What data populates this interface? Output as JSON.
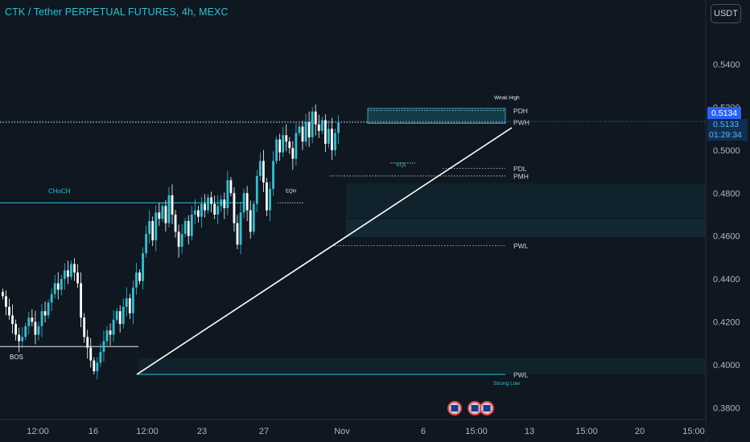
{
  "title": "CTK / Tether PERPETUAL FUTURES, 4h, MEXC",
  "currency_button": "USDT",
  "colors": {
    "background": "#0f1721",
    "accent": "#2fc1d3",
    "bull": "#2fc1d3",
    "bear": "#ffffff",
    "trendline": "#ffffff",
    "last_price": "#2962ff",
    "grid_text": "#b2b5be",
    "label_text": "#d1d4dc"
  },
  "chart_data": {
    "type": "candlestick",
    "y_axis": {
      "ylim": [
        0.3745,
        0.57
      ],
      "ticks": [
        "0.5400",
        "0.5200",
        "0.5000",
        "0.4800",
        "0.4600",
        "0.4400",
        "0.4200",
        "0.4000",
        "0.3800"
      ],
      "tick_values": [
        0.54,
        0.52,
        0.5,
        0.48,
        0.46,
        0.44,
        0.42,
        0.4,
        0.38
      ]
    },
    "x_axis": {
      "ticks": [
        "12:00",
        "16",
        "12:00",
        "23",
        "27",
        "Nov",
        "6",
        "15:00",
        "13",
        "15:00",
        "20",
        "15:00"
      ],
      "bar_positions": [
        11,
        28,
        43,
        60,
        79,
        102,
        128,
        145,
        159,
        176,
        193,
        210
      ]
    },
    "last_price": {
      "value": 0.5134,
      "label": "0.5134",
      "current": "0.5133",
      "countdown": "01:29:34"
    },
    "candles_close": [
      0.432,
      0.427,
      0.423,
      0.419,
      0.414,
      0.411,
      0.413,
      0.418,
      0.422,
      0.42,
      0.414,
      0.418,
      0.425,
      0.423,
      0.429,
      0.433,
      0.438,
      0.435,
      0.44,
      0.444,
      0.441,
      0.447,
      0.443,
      0.438,
      0.422,
      0.413,
      0.408,
      0.402,
      0.397,
      0.401,
      0.406,
      0.411,
      0.416,
      0.414,
      0.421,
      0.425,
      0.419,
      0.427,
      0.431,
      0.424,
      0.436,
      0.443,
      0.439,
      0.452,
      0.461,
      0.467,
      0.458,
      0.471,
      0.468,
      0.474,
      0.466,
      0.479,
      0.47,
      0.462,
      0.455,
      0.461,
      0.467,
      0.46,
      0.47,
      0.472,
      0.469,
      0.475,
      0.472,
      0.478,
      0.475,
      0.47,
      0.474,
      0.477,
      0.473,
      0.486,
      0.48,
      0.466,
      0.456,
      0.471,
      0.48,
      0.472,
      0.462,
      0.475,
      0.488,
      0.495,
      0.485,
      0.472,
      0.482,
      0.495,
      0.505,
      0.499,
      0.507,
      0.504,
      0.501,
      0.496,
      0.508,
      0.511,
      0.504,
      0.513,
      0.506,
      0.518,
      0.512,
      0.509,
      0.514,
      0.503,
      0.51,
      0.5,
      0.508,
      0.513
    ],
    "zones": [
      {
        "label": "PDH",
        "value": 0.5185
      },
      {
        "label": "PWH",
        "value": 0.513
      },
      {
        "label": "PDL",
        "value": 0.4915
      },
      {
        "label": "PMH",
        "value": 0.488
      },
      {
        "label": "PWL",
        "value": 0.4555
      },
      {
        "label": "PWL",
        "value": 0.3955
      }
    ],
    "annotations": {
      "weak_high": "Weak High",
      "strong_low": "Strong Low",
      "choch": "CHoCH",
      "bos": "BOS",
      "eqh": "EQH",
      "eql": "EQL"
    },
    "structure_levels": {
      "choch": 0.4755,
      "bos": 0.4085,
      "eqh": 0.4755,
      "eql": 0.494
    },
    "trendline": {
      "from": {
        "bar": 43,
        "value": 0.3955
      },
      "to": {
        "bar": 153,
        "value": 0.5105
      }
    },
    "grid": false,
    "legend": "none"
  }
}
